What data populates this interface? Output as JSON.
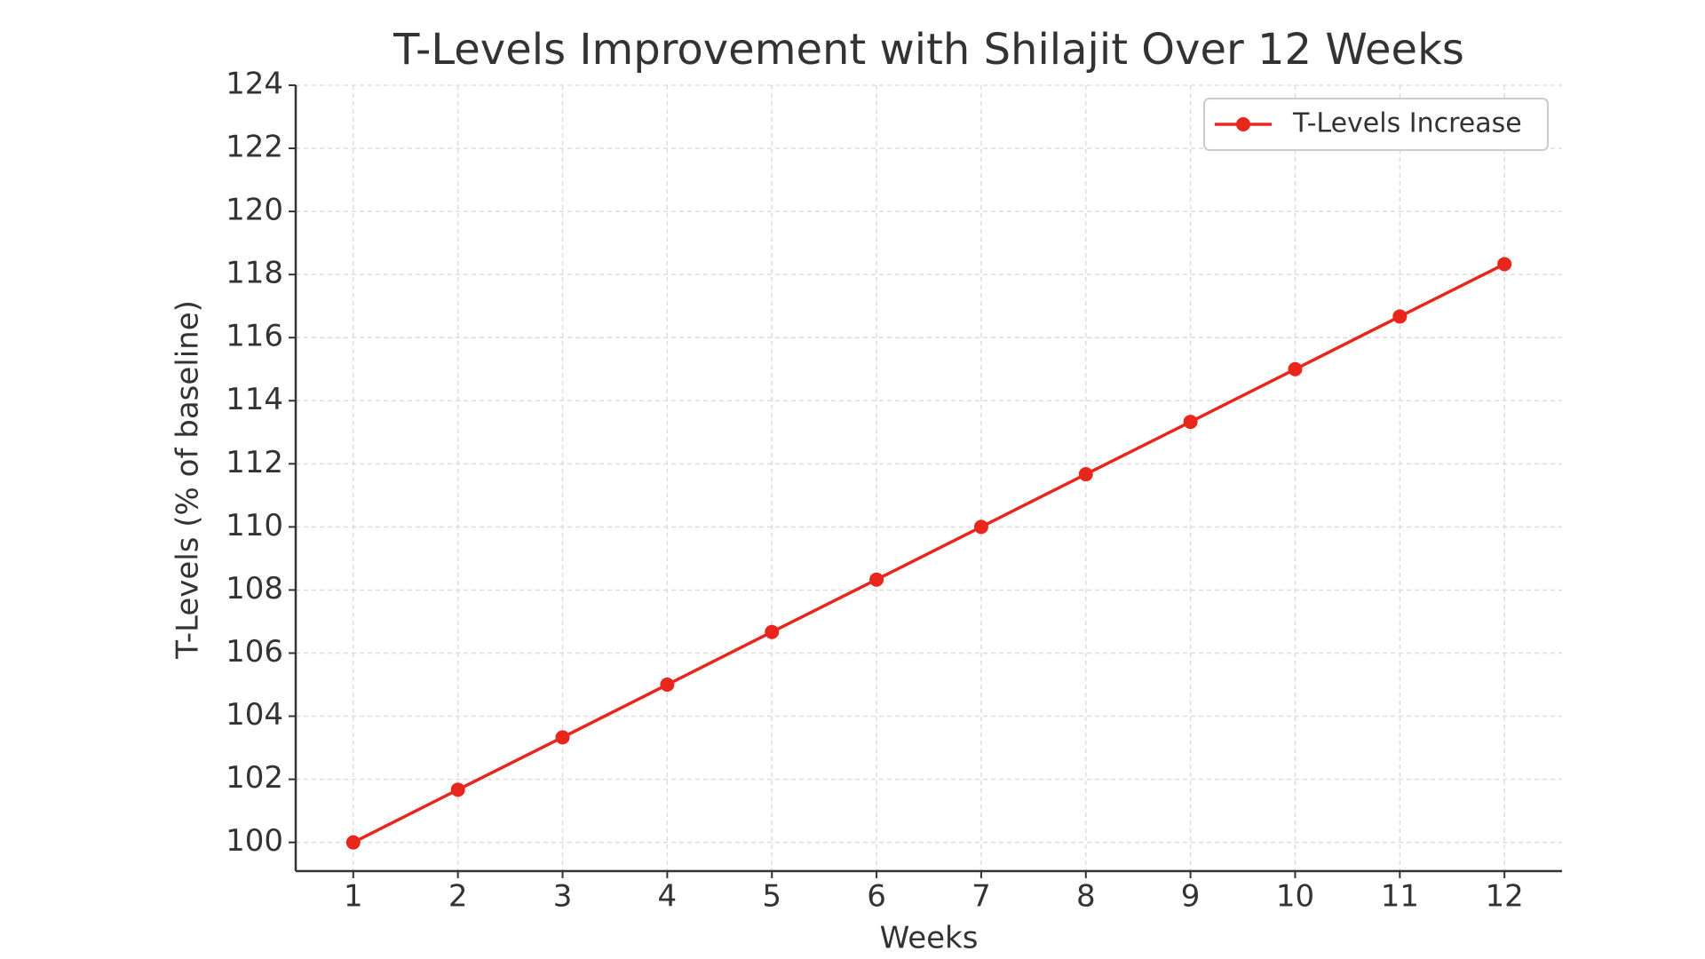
{
  "chart_data": {
    "type": "line",
    "title": "T-Levels Improvement with Shilajit Over 12 Weeks",
    "x_label": "Weeks",
    "y_label": "T-Levels (% of baseline)",
    "x": [
      1,
      2,
      3,
      4,
      5,
      6,
      7,
      8,
      9,
      10,
      11,
      12
    ],
    "series": [
      {
        "name": "T-Levels Increase",
        "color": "#e8261c",
        "values": [
          100,
          101.67,
          103.33,
          105,
          106.67,
          108.33,
          110,
          111.67,
          113.33,
          115,
          116.67,
          118.33
        ]
      }
    ],
    "xlim": [
      0.45,
      12.55
    ],
    "xticks": [
      1,
      2,
      3,
      4,
      5,
      6,
      7,
      8,
      9,
      10,
      11,
      12
    ],
    "ylim": [
      99.09,
      124
    ],
    "yticks": [
      100,
      102,
      104,
      106,
      108,
      110,
      112,
      114,
      116,
      118,
      120,
      122,
      124
    ],
    "grid": true,
    "legend": "upper right"
  }
}
